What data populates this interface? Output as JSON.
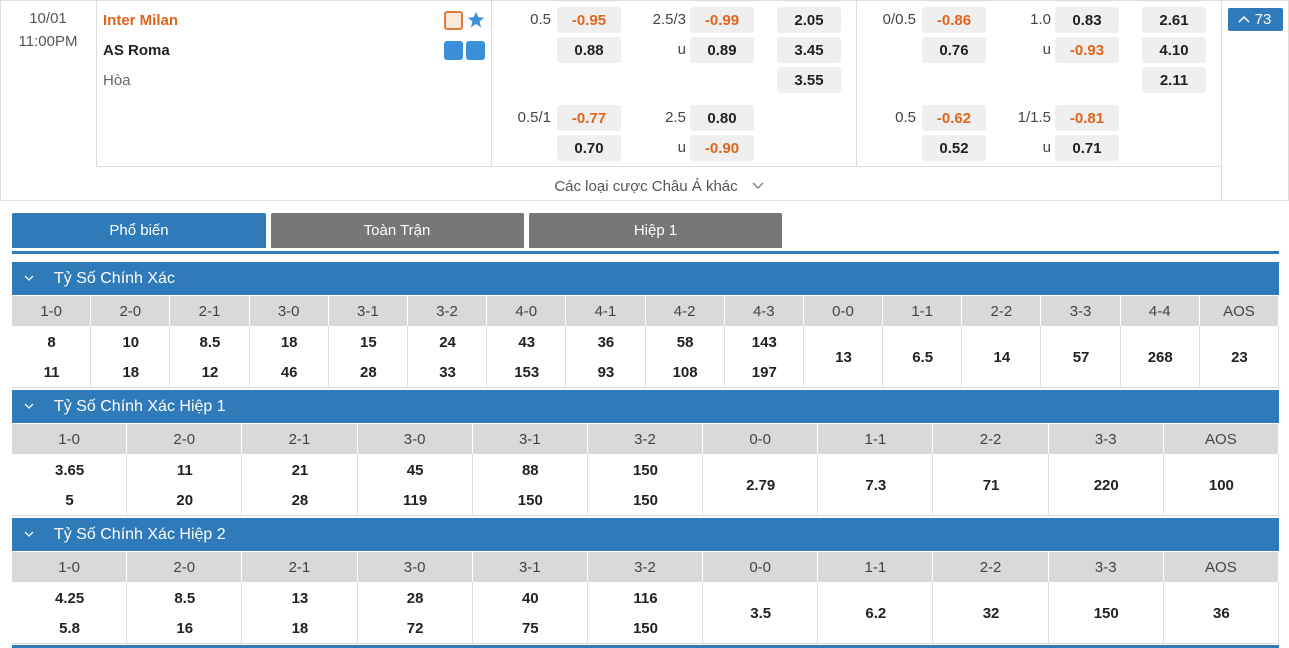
{
  "match": {
    "date": "10/01",
    "time": "11:00PM",
    "home": "Inter Milan",
    "away": "AS Roma",
    "draw": "Hòa",
    "more_count": "73"
  },
  "odds": {
    "full_time": {
      "handicap": [
        {
          "line": "0.5",
          "home": "-0.95",
          "away": "0.88"
        },
        {
          "line": "0.5/1",
          "home": "-0.77",
          "away": "0.70"
        }
      ],
      "over_under": [
        {
          "line": "2.5/3",
          "over": "-0.99",
          "under_label": "u",
          "under": "0.89"
        },
        {
          "line": "2.5",
          "over": "0.80",
          "under_label": "u",
          "under": "-0.90"
        }
      ],
      "result": [
        "2.05",
        "3.45",
        "3.55"
      ]
    },
    "first_half": {
      "handicap": [
        {
          "line": "0/0.5",
          "home": "-0.86",
          "away": "0.76"
        },
        {
          "line": "0.5",
          "home": "-0.62",
          "away": "0.52"
        }
      ],
      "over_under": [
        {
          "line": "1.0",
          "over": "0.83",
          "under_label": "u",
          "under": "-0.93"
        },
        {
          "line": "1/1.5",
          "over": "-0.81",
          "under_label": "u",
          "under": "0.71"
        }
      ],
      "result": [
        "2.61",
        "4.10",
        "2.11"
      ]
    }
  },
  "other_bets": "Các loại cược Châu Á khác",
  "tabs": [
    "Phổ biến",
    "Toàn Trận",
    "Hiệp 1"
  ],
  "sections": [
    {
      "title": "Tỷ Số Chính Xác",
      "columns": [
        {
          "score": "1-0",
          "odds": [
            "8",
            "11"
          ]
        },
        {
          "score": "2-0",
          "odds": [
            "10",
            "18"
          ]
        },
        {
          "score": "2-1",
          "odds": [
            "8.5",
            "12"
          ]
        },
        {
          "score": "3-0",
          "odds": [
            "18",
            "46"
          ]
        },
        {
          "score": "3-1",
          "odds": [
            "15",
            "28"
          ]
        },
        {
          "score": "3-2",
          "odds": [
            "24",
            "33"
          ]
        },
        {
          "score": "4-0",
          "odds": [
            "43",
            "153"
          ]
        },
        {
          "score": "4-1",
          "odds": [
            "36",
            "93"
          ]
        },
        {
          "score": "4-2",
          "odds": [
            "58",
            "108"
          ]
        },
        {
          "score": "4-3",
          "odds": [
            "143",
            "197"
          ]
        },
        {
          "score": "0-0",
          "odds": [
            "13"
          ]
        },
        {
          "score": "1-1",
          "odds": [
            "6.5"
          ]
        },
        {
          "score": "2-2",
          "odds": [
            "14"
          ]
        },
        {
          "score": "3-3",
          "odds": [
            "57"
          ]
        },
        {
          "score": "4-4",
          "odds": [
            "268"
          ]
        },
        {
          "score": "AOS",
          "odds": [
            "23"
          ]
        }
      ]
    },
    {
      "title": "Tỷ Số Chính Xác Hiệp 1",
      "columns": [
        {
          "score": "1-0",
          "odds": [
            "3.65",
            "5"
          ]
        },
        {
          "score": "2-0",
          "odds": [
            "11",
            "20"
          ]
        },
        {
          "score": "2-1",
          "odds": [
            "21",
            "28"
          ]
        },
        {
          "score": "3-0",
          "odds": [
            "45",
            "119"
          ]
        },
        {
          "score": "3-1",
          "odds": [
            "88",
            "150"
          ]
        },
        {
          "score": "3-2",
          "odds": [
            "150",
            "150"
          ]
        },
        {
          "score": "0-0",
          "odds": [
            "2.79"
          ]
        },
        {
          "score": "1-1",
          "odds": [
            "7.3"
          ]
        },
        {
          "score": "2-2",
          "odds": [
            "71"
          ]
        },
        {
          "score": "3-3",
          "odds": [
            "220"
          ]
        },
        {
          "score": "AOS",
          "odds": [
            "100"
          ]
        }
      ]
    },
    {
      "title": "Tỷ Số Chính Xác Hiệp 2",
      "columns": [
        {
          "score": "1-0",
          "odds": [
            "4.25",
            "5.8"
          ]
        },
        {
          "score": "2-0",
          "odds": [
            "8.5",
            "16"
          ]
        },
        {
          "score": "2-1",
          "odds": [
            "13",
            "18"
          ]
        },
        {
          "score": "3-0",
          "odds": [
            "28",
            "72"
          ]
        },
        {
          "score": "3-1",
          "odds": [
            "40",
            "75"
          ]
        },
        {
          "score": "3-2",
          "odds": [
            "116",
            "150"
          ]
        },
        {
          "score": "0-0",
          "odds": [
            "3.5"
          ]
        },
        {
          "score": "1-1",
          "odds": [
            "6.2"
          ]
        },
        {
          "score": "2-2",
          "odds": [
            "32"
          ]
        },
        {
          "score": "3-3",
          "odds": [
            "150"
          ]
        },
        {
          "score": "AOS",
          "odds": [
            "36"
          ]
        }
      ]
    }
  ]
}
